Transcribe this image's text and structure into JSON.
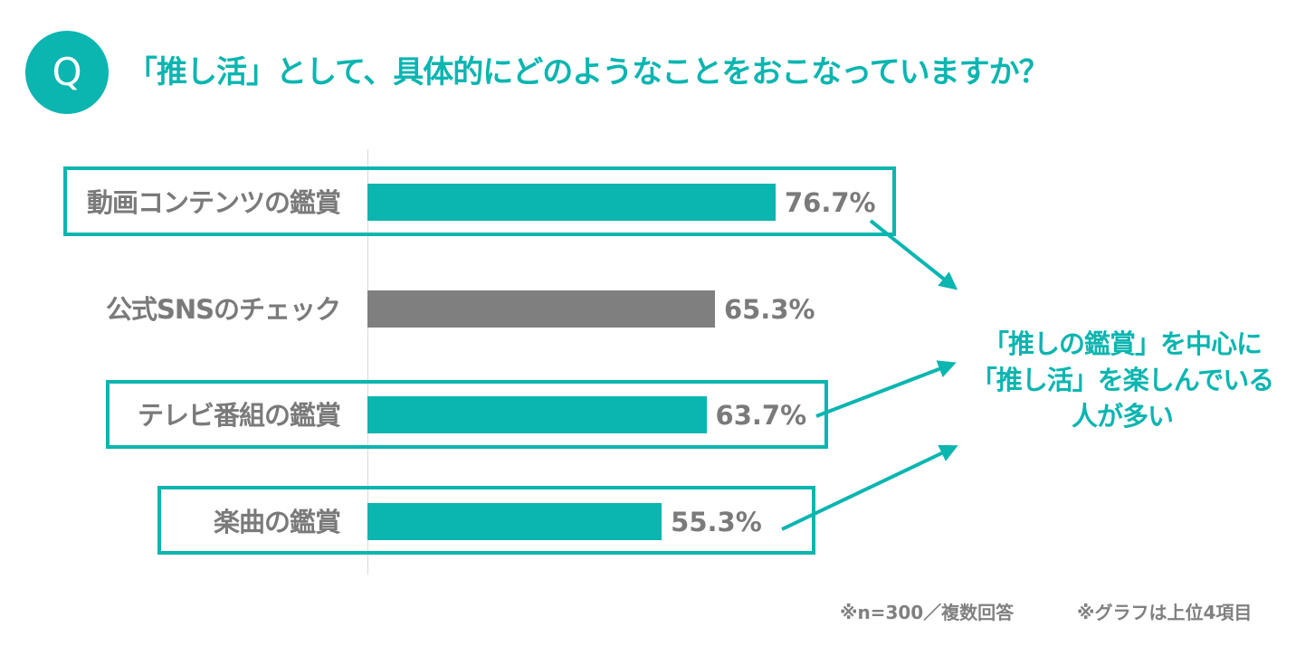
{
  "header": {
    "q_mark": "Q",
    "question": "「推し活」として、具体的にどのようなことをおこなっていますか？"
  },
  "colors": {
    "accent": "#0bb5b0",
    "bar_teal": "#0bb5b0",
    "bar_gray": "#7f7f7f",
    "text_gray": "#7a7a7a"
  },
  "chart_data": {
    "type": "bar",
    "orientation": "horizontal",
    "categories": [
      "動画コンテンツの鑑賞",
      "公式SNSのチェック",
      "テレビ番組の鑑賞",
      "楽曲の鑑賞"
    ],
    "values": [
      76.7,
      65.3,
      63.7,
      55.3
    ],
    "value_labels": [
      "76.7%",
      "65.3%",
      "63.7%",
      "55.3%"
    ],
    "highlighted": [
      true,
      false,
      true,
      true
    ],
    "unit": "%",
    "xlim": [
      0,
      100
    ],
    "grid": false,
    "legend": "none"
  },
  "callout": {
    "lines": [
      "「推しの鑑賞」を中心に",
      "「推し活」を楽しんでいる",
      "人が多い"
    ]
  },
  "footnotes": {
    "sample": "※n=300／複数回答",
    "scope": "※グラフは上位4項目"
  }
}
